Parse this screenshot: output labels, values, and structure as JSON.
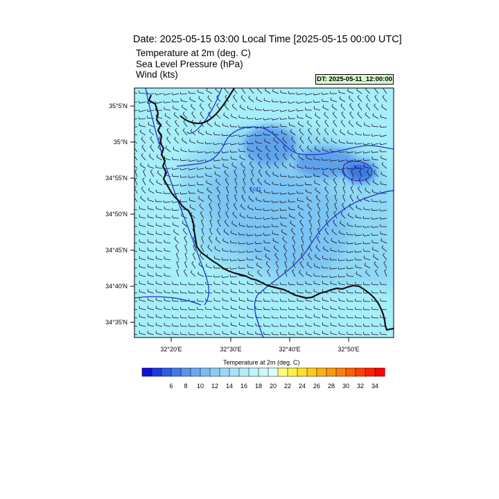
{
  "header": {
    "title": "Date: 2025-05-15  03:00 Local Time [2025-05-15  00:00 UTC]",
    "fields": [
      "Temperature at 2m   (deg. C)",
      "Sea Level Pressure   (hPa)",
      "Wind   (kts)"
    ],
    "dt_label": "DT: 2025-05-11_12:00:00"
  },
  "map": {
    "lat_labels": [
      "35°5'N",
      "35°N",
      "34°55'N",
      "34°50'N",
      "34°45'N",
      "34°40'N",
      "34°35'N"
    ],
    "lon_labels": [
      "32°20'E",
      "32°30'E",
      "32°40'E",
      "32°50'E"
    ],
    "pressure_labels": [
      "1011",
      "1012"
    ],
    "colors": {
      "field_base": "#a6eefa",
      "field_mid": "#8fd8f6",
      "field_cool": "#7bc4f3",
      "field_cold": "#5ea2ec",
      "field_coldest": "#3d78e0",
      "coastline": "#111111",
      "isobar": "#2233cc"
    }
  },
  "colorbar": {
    "title": "Temperature at 2m  (deg. C)",
    "labels": [
      "6",
      "8",
      "10",
      "12",
      "14",
      "16",
      "18",
      "20",
      "22",
      "24",
      "26",
      "28",
      "30",
      "32",
      "34"
    ],
    "colors": [
      "#1010d8",
      "#1f3ae0",
      "#2f5ce6",
      "#4378ea",
      "#5a92ee",
      "#6aa8f1",
      "#7cbcf3",
      "#8ccbf5",
      "#9bd7f7",
      "#a8e2f8",
      "#b4ecf9",
      "#c1f3fa",
      "#cef8fb",
      "#e0fcfd",
      "#fcfc7a",
      "#fff04a",
      "#ffe02a",
      "#ffc81a",
      "#ffb010",
      "#ff980c",
      "#ff7e08",
      "#ff6006",
      "#ff4004",
      "#ff2000",
      "#ff0000"
    ]
  }
}
